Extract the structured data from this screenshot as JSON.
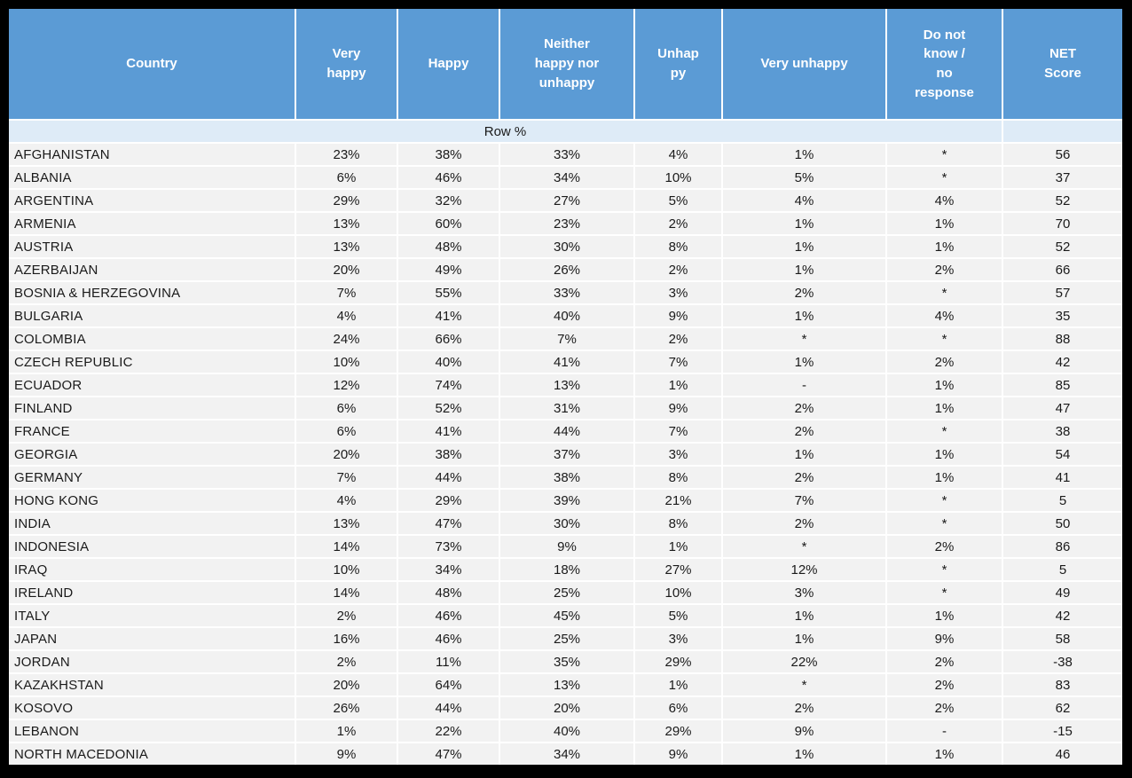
{
  "colors": {
    "frame": "#000000",
    "header_bg": "#5b9bd5",
    "header_text": "#ffffff",
    "row_percent_band_bg": "#deebf7",
    "data_row_bg": "#f2f2f2",
    "grid_gap": "#ffffff",
    "body_text": "#1a1a1a"
  },
  "chart_data": {
    "type": "table",
    "columns": [
      "Country",
      "Very happy",
      "Happy",
      "Neither happy nor unhappy",
      "Unhappy",
      "Very unhappy",
      "Do not know / no response",
      "NET Score"
    ],
    "row_percent_label": "Row %",
    "rows": [
      [
        "AFGHANISTAN",
        "23%",
        "38%",
        "33%",
        "4%",
        "1%",
        "*",
        "56"
      ],
      [
        "ALBANIA",
        "6%",
        "46%",
        "34%",
        "10%",
        "5%",
        "*",
        "37"
      ],
      [
        "ARGENTINA",
        "29%",
        "32%",
        "27%",
        "5%",
        "4%",
        "4%",
        "52"
      ],
      [
        "ARMENIA",
        "13%",
        "60%",
        "23%",
        "2%",
        "1%",
        "1%",
        "70"
      ],
      [
        "AUSTRIA",
        "13%",
        "48%",
        "30%",
        "8%",
        "1%",
        "1%",
        "52"
      ],
      [
        "AZERBAIJAN",
        "20%",
        "49%",
        "26%",
        "2%",
        "1%",
        "2%",
        "66"
      ],
      [
        "BOSNIA & HERZEGOVINA",
        "7%",
        "55%",
        "33%",
        "3%",
        "2%",
        "*",
        "57"
      ],
      [
        "BULGARIA",
        "4%",
        "41%",
        "40%",
        "9%",
        "1%",
        "4%",
        "35"
      ],
      [
        "COLOMBIA",
        "24%",
        "66%",
        "7%",
        "2%",
        "*",
        "*",
        "88"
      ],
      [
        "CZECH REPUBLIC",
        "10%",
        "40%",
        "41%",
        "7%",
        "1%",
        "2%",
        "42"
      ],
      [
        "ECUADOR",
        "12%",
        "74%",
        "13%",
        "1%",
        "-",
        "1%",
        "85"
      ],
      [
        "FINLAND",
        "6%",
        "52%",
        "31%",
        "9%",
        "2%",
        "1%",
        "47"
      ],
      [
        "FRANCE",
        "6%",
        "41%",
        "44%",
        "7%",
        "2%",
        "*",
        "38"
      ],
      [
        "GEORGIA",
        "20%",
        "38%",
        "37%",
        "3%",
        "1%",
        "1%",
        "54"
      ],
      [
        "GERMANY",
        "7%",
        "44%",
        "38%",
        "8%",
        "2%",
        "1%",
        "41"
      ],
      [
        "HONG KONG",
        "4%",
        "29%",
        "39%",
        "21%",
        "7%",
        "*",
        "5"
      ],
      [
        "INDIA",
        "13%",
        "47%",
        "30%",
        "8%",
        "2%",
        "*",
        "50"
      ],
      [
        "INDONESIA",
        "14%",
        "73%",
        "9%",
        "1%",
        "*",
        "2%",
        "86"
      ],
      [
        "IRAQ",
        "10%",
        "34%",
        "18%",
        "27%",
        "12%",
        "*",
        "5"
      ],
      [
        "IRELAND",
        "14%",
        "48%",
        "25%",
        "10%",
        "3%",
        "*",
        "49"
      ],
      [
        "ITALY",
        "2%",
        "46%",
        "45%",
        "5%",
        "1%",
        "1%",
        "42"
      ],
      [
        "JAPAN",
        "16%",
        "46%",
        "25%",
        "3%",
        "1%",
        "9%",
        "58"
      ],
      [
        "JORDAN",
        "2%",
        "11%",
        "35%",
        "29%",
        "22%",
        "2%",
        "-38"
      ],
      [
        "KAZAKHSTAN",
        "20%",
        "64%",
        "13%",
        "1%",
        "*",
        "2%",
        "83"
      ],
      [
        "KOSOVO",
        "26%",
        "44%",
        "20%",
        "6%",
        "2%",
        "2%",
        "62"
      ],
      [
        "LEBANON",
        "1%",
        "22%",
        "40%",
        "29%",
        "9%",
        "-",
        "-15"
      ],
      [
        "NORTH MACEDONIA",
        "9%",
        "47%",
        "34%",
        "9%",
        "1%",
        "1%",
        "46"
      ]
    ]
  }
}
